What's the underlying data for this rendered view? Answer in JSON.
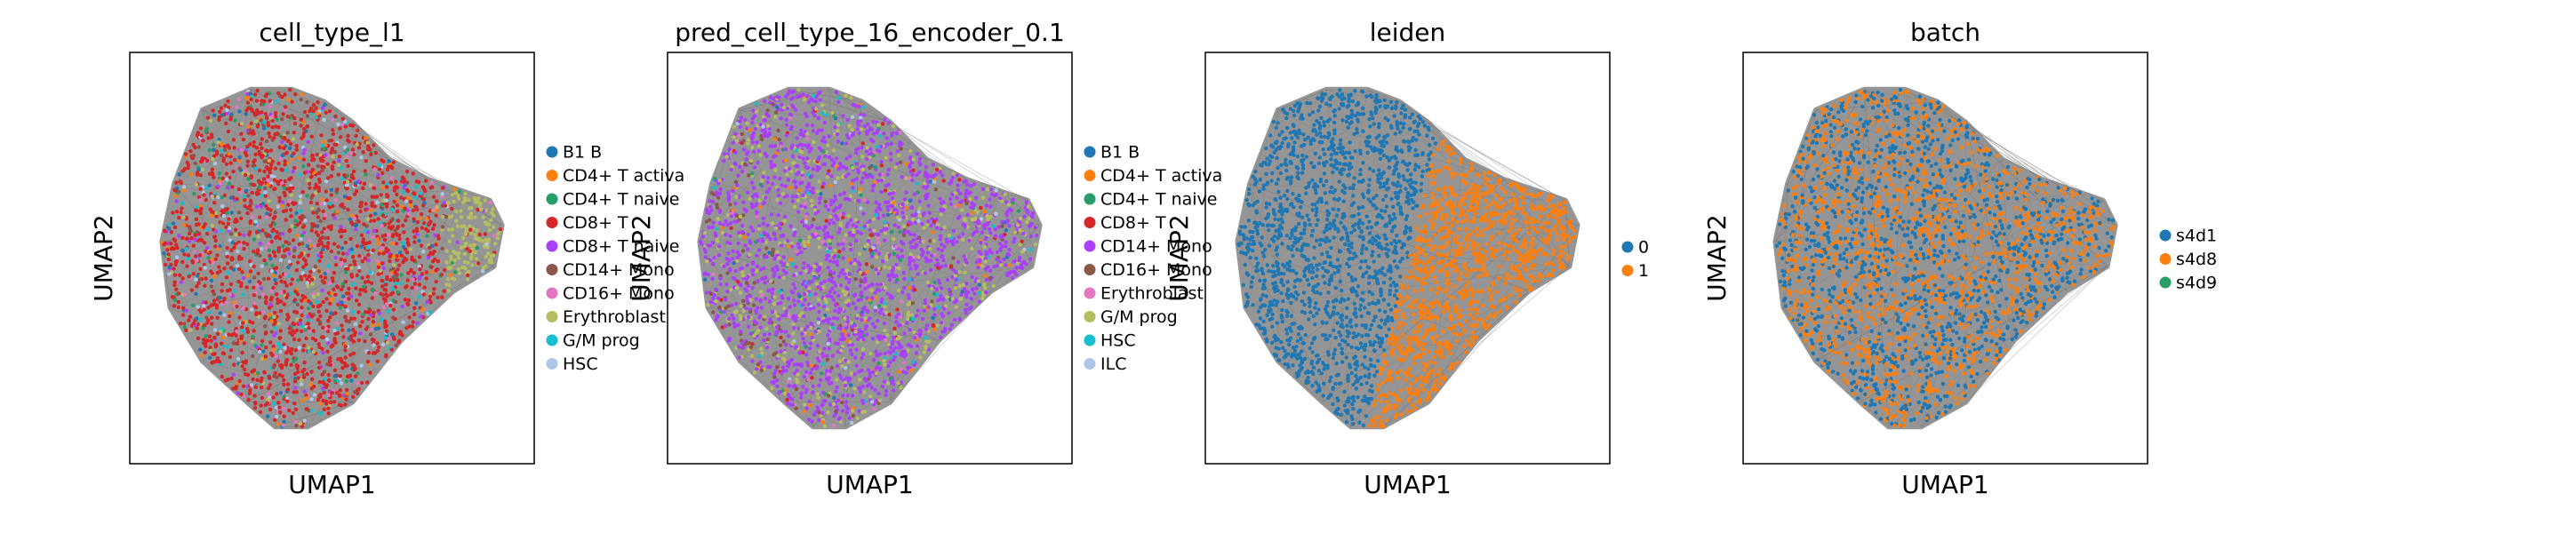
{
  "chart_data": [
    {
      "type": "scatter",
      "title": "cell_type_l1",
      "xlabel": "UMAP1",
      "ylabel": "UMAP2",
      "grid": false,
      "legend_placement": "right",
      "dominant_category": "CD8+ T",
      "categories": [
        {
          "label": "B1 B",
          "color": "#1f77b4"
        },
        {
          "label": "CD4+ T activa",
          "color": "#ff7f0e"
        },
        {
          "label": "CD4+ T naive",
          "color": "#279e68"
        },
        {
          "label": "CD8+ T",
          "color": "#d62728"
        },
        {
          "label": "CD8+ T naive",
          "color": "#aa40fc"
        },
        {
          "label": "CD14+ Mono",
          "color": "#8c564b"
        },
        {
          "label": "CD16+ Mono",
          "color": "#e377c2"
        },
        {
          "label": "Erythroblast",
          "color": "#b5bd61"
        },
        {
          "label": "G/M prog",
          "color": "#17becf"
        },
        {
          "label": "HSC",
          "color": "#aec7e8"
        }
      ]
    },
    {
      "type": "scatter",
      "title": "pred_cell_type_16_encoder_0.1",
      "xlabel": "UMAP1",
      "ylabel": "UMAP2",
      "grid": false,
      "legend_placement": "right",
      "dominant_category": "CD14+ Mono",
      "categories": [
        {
          "label": "B1 B",
          "color": "#1f77b4"
        },
        {
          "label": "CD4+ T activa",
          "color": "#ff7f0e"
        },
        {
          "label": "CD4+ T naive",
          "color": "#279e68"
        },
        {
          "label": "CD8+ T",
          "color": "#d62728"
        },
        {
          "label": "CD14+ Mono",
          "color": "#aa40fc"
        },
        {
          "label": "CD16+ Mono",
          "color": "#8c564b"
        },
        {
          "label": "Erythroblast",
          "color": "#e377c2"
        },
        {
          "label": "G/M prog",
          "color": "#b5bd61"
        },
        {
          "label": "HSC",
          "color": "#17becf"
        },
        {
          "label": "ILC",
          "color": "#aec7e8"
        }
      ]
    },
    {
      "type": "scatter",
      "title": "leiden",
      "xlabel": "UMAP1",
      "ylabel": "UMAP2",
      "grid": false,
      "legend_placement": "right",
      "categories": [
        {
          "label": "0",
          "color": "#1f77b4"
        },
        {
          "label": "1",
          "color": "#ff7f0e"
        }
      ]
    },
    {
      "type": "scatter",
      "title": "batch",
      "xlabel": "UMAP1",
      "ylabel": "UMAP2",
      "grid": false,
      "legend_placement": "right",
      "categories": [
        {
          "label": "s4d1",
          "color": "#1f77b4"
        },
        {
          "label": "s4d8",
          "color": "#ff7f0e"
        },
        {
          "label": "s4d9",
          "color": "#279e68"
        }
      ]
    }
  ]
}
